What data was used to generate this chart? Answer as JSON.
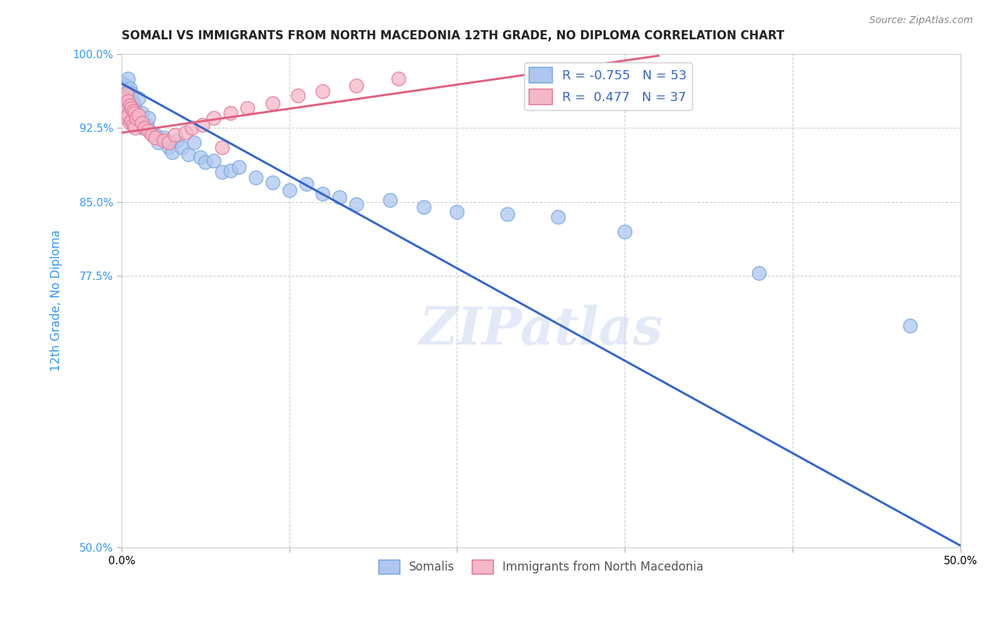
{
  "title": "SOMALI VS IMMIGRANTS FROM NORTH MACEDONIA 12TH GRADE, NO DIPLOMA CORRELATION CHART",
  "source": "Source: ZipAtlas.com",
  "ylabel": "12th Grade, No Diploma",
  "xlabel": "",
  "xlim": [
    0.0,
    0.5
  ],
  "ylim": [
    0.5,
    1.0
  ],
  "yticks": [
    0.5,
    0.775,
    0.85,
    0.925,
    1.0
  ],
  "ytick_labels": [
    "50.0%",
    "77.5%",
    "85.0%",
    "92.5%",
    "100.0%"
  ],
  "xticks": [
    0.0,
    0.1,
    0.2,
    0.3,
    0.4,
    0.5
  ],
  "xtick_labels": [
    "0.0%",
    "",
    "",
    "",
    "",
    "50.0%"
  ],
  "background_color": "#ffffff",
  "grid_color": "#c8c8c8",
  "somali_color": "#aec6f0",
  "somali_edge_color": "#7aaade",
  "macedonia_color": "#f5b8c8",
  "macedonia_edge_color": "#e87898",
  "somali_line_color": "#3366cc",
  "macedonia_line_color": "#e06080",
  "R_somali": -0.755,
  "N_somali": 53,
  "R_macedonia": 0.477,
  "N_macedonia": 37,
  "watermark": "ZIPatlas",
  "watermark_color": "#ccd8f0",
  "somali_x": [
    0.001,
    0.002,
    0.002,
    0.003,
    0.003,
    0.004,
    0.004,
    0.005,
    0.005,
    0.006,
    0.006,
    0.007,
    0.007,
    0.008,
    0.008,
    0.009,
    0.01,
    0.011,
    0.012,
    0.013,
    0.015,
    0.016,
    0.018,
    0.02,
    0.022,
    0.025,
    0.028,
    0.03,
    0.033,
    0.036,
    0.04,
    0.043,
    0.047,
    0.05,
    0.055,
    0.06,
    0.065,
    0.07,
    0.08,
    0.09,
    0.1,
    0.11,
    0.12,
    0.13,
    0.14,
    0.16,
    0.18,
    0.2,
    0.23,
    0.26,
    0.3,
    0.38,
    0.47
  ],
  "somali_y": [
    0.97,
    0.962,
    0.958,
    0.968,
    0.945,
    0.975,
    0.955,
    0.965,
    0.94,
    0.96,
    0.935,
    0.95,
    0.942,
    0.938,
    0.945,
    0.935,
    0.955,
    0.93,
    0.94,
    0.925,
    0.928,
    0.935,
    0.92,
    0.918,
    0.91,
    0.915,
    0.905,
    0.9,
    0.912,
    0.905,
    0.898,
    0.91,
    0.895,
    0.89,
    0.892,
    0.88,
    0.882,
    0.885,
    0.875,
    0.87,
    0.862,
    0.868,
    0.858,
    0.855,
    0.848,
    0.852,
    0.845,
    0.84,
    0.838,
    0.835,
    0.82,
    0.778,
    0.725
  ],
  "macedonia_x": [
    0.001,
    0.002,
    0.002,
    0.003,
    0.003,
    0.004,
    0.004,
    0.005,
    0.005,
    0.006,
    0.006,
    0.007,
    0.007,
    0.008,
    0.008,
    0.009,
    0.01,
    0.012,
    0.014,
    0.016,
    0.018,
    0.02,
    0.025,
    0.028,
    0.032,
    0.038,
    0.042,
    0.048,
    0.055,
    0.065,
    0.075,
    0.09,
    0.105,
    0.12,
    0.14,
    0.165,
    0.06
  ],
  "macedonia_y": [
    0.94,
    0.955,
    0.945,
    0.96,
    0.935,
    0.952,
    0.938,
    0.948,
    0.93,
    0.945,
    0.932,
    0.942,
    0.928,
    0.94,
    0.925,
    0.935,
    0.938,
    0.93,
    0.925,
    0.922,
    0.918,
    0.915,
    0.912,
    0.91,
    0.918,
    0.92,
    0.925,
    0.928,
    0.935,
    0.94,
    0.945,
    0.95,
    0.958,
    0.962,
    0.968,
    0.975,
    0.905
  ],
  "somali_line_x": [
    0.0,
    0.5
  ],
  "somali_line_y": [
    0.97,
    0.502
  ],
  "macedonia_line_x": [
    0.0,
    0.32
  ],
  "macedonia_line_y": [
    0.92,
    0.998
  ]
}
